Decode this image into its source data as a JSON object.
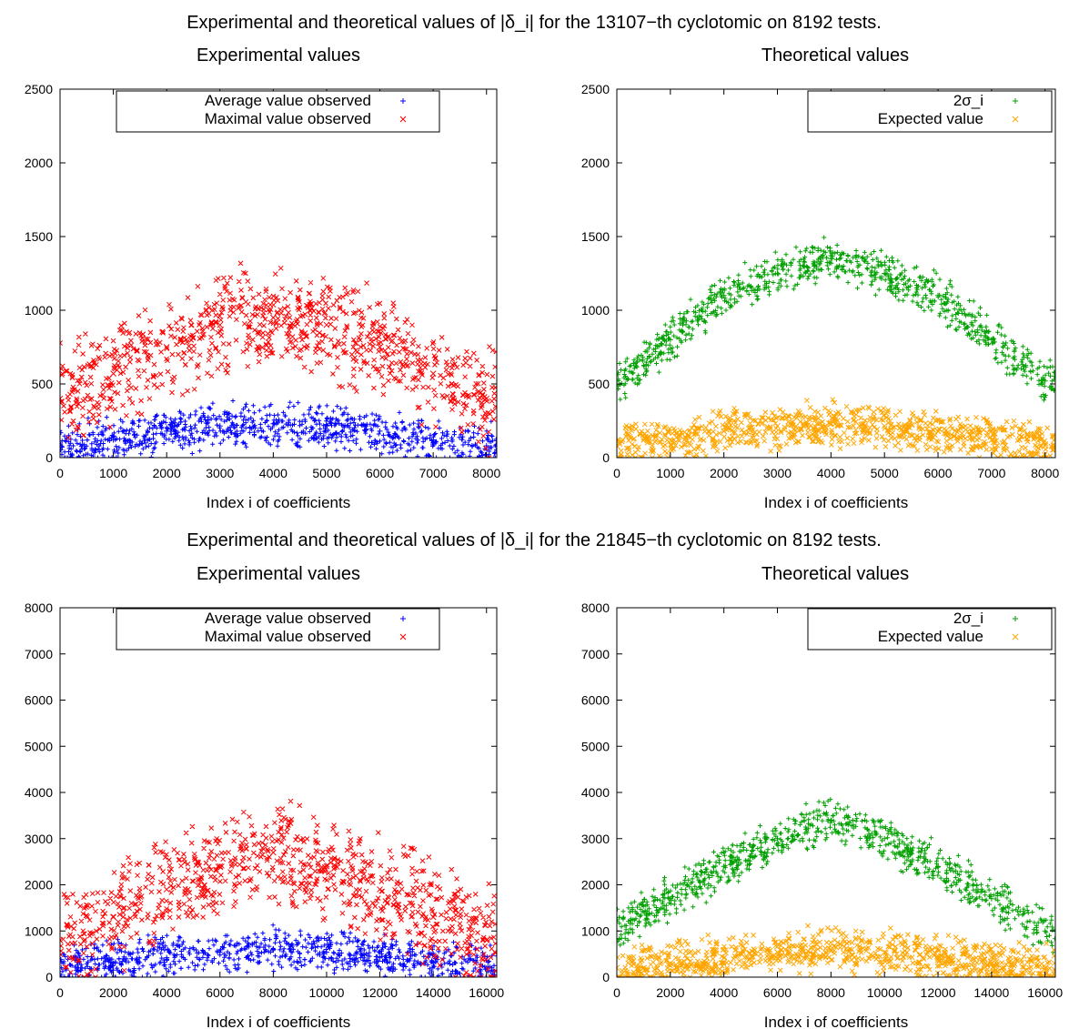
{
  "figure_titles": [
    "Experimental and theoretical values of |δ_i| for the 13107−th cyclotomic on 8192 tests.",
    "Experimental and theoretical values of |δ_i| for the 21845−th cyclotomic on 8192 tests."
  ],
  "colors": {
    "average": "#0000ff",
    "maximal": "#ff0000",
    "two_sigma": "#00a000",
    "expected": "#ffa500"
  },
  "chart_data": [
    {
      "type": "scatter",
      "title": "Experimental values",
      "xlabel": "Index i of coefficients",
      "ylabel": "",
      "xlim": [
        0,
        8192
      ],
      "ylim": [
        0,
        2500
      ],
      "xticks": [
        0,
        1000,
        2000,
        3000,
        4000,
        5000,
        6000,
        7000,
        8000
      ],
      "yticks": [
        0,
        500,
        1000,
        1500,
        2000,
        2500
      ],
      "legend_position": "top-center",
      "series": [
        {
          "name": "Average value observed",
          "marker": "+",
          "color": "#0000ff",
          "x": [
            0,
            1000,
            2000,
            3000,
            4000,
            5000,
            6000,
            7000,
            8000
          ],
          "y": [
            80,
            120,
            180,
            215,
            230,
            215,
            180,
            120,
            80
          ]
        },
        {
          "name": "Maximal value observed",
          "marker": "x",
          "color": "#ff0000",
          "x": [
            0,
            1000,
            2000,
            3000,
            4000,
            5000,
            6000,
            7000,
            8000
          ],
          "y": [
            400,
            570,
            750,
            900,
            950,
            900,
            750,
            570,
            400
          ]
        }
      ]
    },
    {
      "type": "scatter",
      "title": "Theoretical values",
      "xlabel": "Index i of coefficients",
      "ylabel": "",
      "xlim": [
        0,
        8192
      ],
      "ylim": [
        0,
        2500
      ],
      "xticks": [
        0,
        1000,
        2000,
        3000,
        4000,
        5000,
        6000,
        7000,
        8000
      ],
      "yticks": [
        0,
        500,
        1000,
        1500,
        2000,
        2500
      ],
      "legend_position": "top-right",
      "series": [
        {
          "name": "2σ_i",
          "marker": "+",
          "color": "#00a000",
          "x": [
            0,
            1000,
            2000,
            3000,
            4000,
            5000,
            6000,
            7000,
            8000
          ],
          "y": [
            520,
            800,
            1100,
            1250,
            1350,
            1250,
            1100,
            800,
            520
          ]
        },
        {
          "name": "Expected value",
          "marker": "x",
          "color": "#ffa500",
          "x": [
            0,
            1000,
            2000,
            3000,
            4000,
            5000,
            6000,
            7000,
            8000
          ],
          "y": [
            80,
            120,
            180,
            215,
            230,
            215,
            180,
            120,
            80
          ]
        }
      ]
    },
    {
      "type": "scatter",
      "title": "Experimental values",
      "xlabel": "Index i of coefficients",
      "ylabel": "",
      "xlim": [
        0,
        16384
      ],
      "ylim": [
        0,
        8000
      ],
      "xticks": [
        0,
        2000,
        4000,
        6000,
        8000,
        10000,
        12000,
        14000,
        16000
      ],
      "yticks": [
        0,
        1000,
        2000,
        3000,
        4000,
        5000,
        6000,
        7000,
        8000
      ],
      "legend_position": "top-center",
      "series": [
        {
          "name": "Average value observed",
          "marker": "+",
          "color": "#0000ff",
          "x": [
            0,
            2000,
            4000,
            6000,
            8000,
            10000,
            12000,
            14000,
            16000
          ],
          "y": [
            200,
            300,
            420,
            540,
            600,
            540,
            420,
            300,
            200
          ]
        },
        {
          "name": "Maximal value observed",
          "marker": "x",
          "color": "#ff0000",
          "x": [
            0,
            2000,
            4000,
            6000,
            8000,
            10000,
            12000,
            14000,
            16000
          ],
          "y": [
            800,
            1300,
            1900,
            2400,
            2700,
            2400,
            1900,
            1300,
            800
          ]
        }
      ]
    },
    {
      "type": "scatter",
      "title": "Theoretical values",
      "xlabel": "Index i of coefficients",
      "ylabel": "",
      "xlim": [
        0,
        16384
      ],
      "ylim": [
        0,
        8000
      ],
      "xticks": [
        0,
        2000,
        4000,
        6000,
        8000,
        10000,
        12000,
        14000,
        16000
      ],
      "yticks": [
        0,
        1000,
        2000,
        3000,
        4000,
        5000,
        6000,
        7000,
        8000
      ],
      "legend_position": "top-right",
      "series": [
        {
          "name": "2σ_i",
          "marker": "+",
          "color": "#00a000",
          "x": [
            0,
            2000,
            4000,
            6000,
            8000,
            10000,
            12000,
            14000,
            16000
          ],
          "y": [
            1000,
            1700,
            2400,
            3000,
            3400,
            3000,
            2400,
            1700,
            1000
          ]
        },
        {
          "name": "Expected value",
          "marker": "x",
          "color": "#ffa500",
          "x": [
            0,
            2000,
            4000,
            6000,
            8000,
            10000,
            12000,
            14000,
            16000
          ],
          "y": [
            200,
            300,
            420,
            540,
            600,
            540,
            420,
            300,
            200
          ]
        }
      ]
    }
  ]
}
